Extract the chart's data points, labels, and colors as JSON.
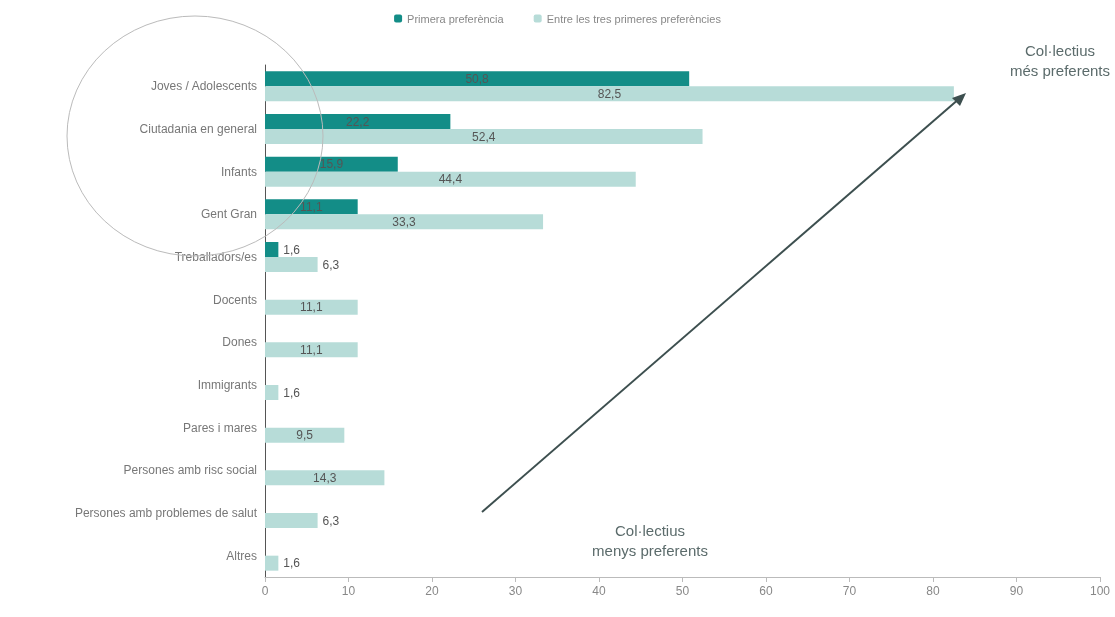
{
  "chart_data": {
    "type": "bar",
    "orientation": "horizontal",
    "categories": [
      "Joves / Adolescents",
      "Ciutadania en general",
      "Infants",
      "Gent Gran",
      "Treballadors/es",
      "Docents",
      "Dones",
      "Immigrants",
      "Pares i mares",
      "Persones amb risc social",
      "Persones amb problemes de salut",
      "Altres"
    ],
    "series": [
      {
        "name": "Primera preferència",
        "color": "#138d87",
        "values": [
          50.8,
          22.2,
          15.9,
          11.1,
          1.6,
          null,
          null,
          null,
          null,
          null,
          null,
          null
        ],
        "value_labels": [
          "50,8",
          "22,2",
          "15,9",
          "11,1",
          "1,6",
          null,
          null,
          null,
          null,
          null,
          null,
          null
        ]
      },
      {
        "name": "Entre les tres primeres preferències",
        "color": "#b7dcd8",
        "values": [
          82.5,
          52.4,
          44.4,
          33.3,
          6.3,
          11.1,
          11.1,
          1.6,
          9.5,
          14.3,
          6.3,
          1.6
        ],
        "value_labels": [
          "82,5",
          "52,4",
          "44,4",
          "33,3",
          "6,3",
          "11,1",
          "11,1",
          "1,6",
          "9,5",
          "14,3",
          "6,3",
          "1,6"
        ]
      }
    ],
    "xlim": [
      0,
      100
    ],
    "xticks": [
      0,
      10,
      20,
      30,
      40,
      50,
      60,
      70,
      80,
      90,
      100
    ],
    "grid": false,
    "legend": "top",
    "annotations": [
      "Col·lectius més preferents",
      "Col·lectius menys preferents"
    ]
  }
}
